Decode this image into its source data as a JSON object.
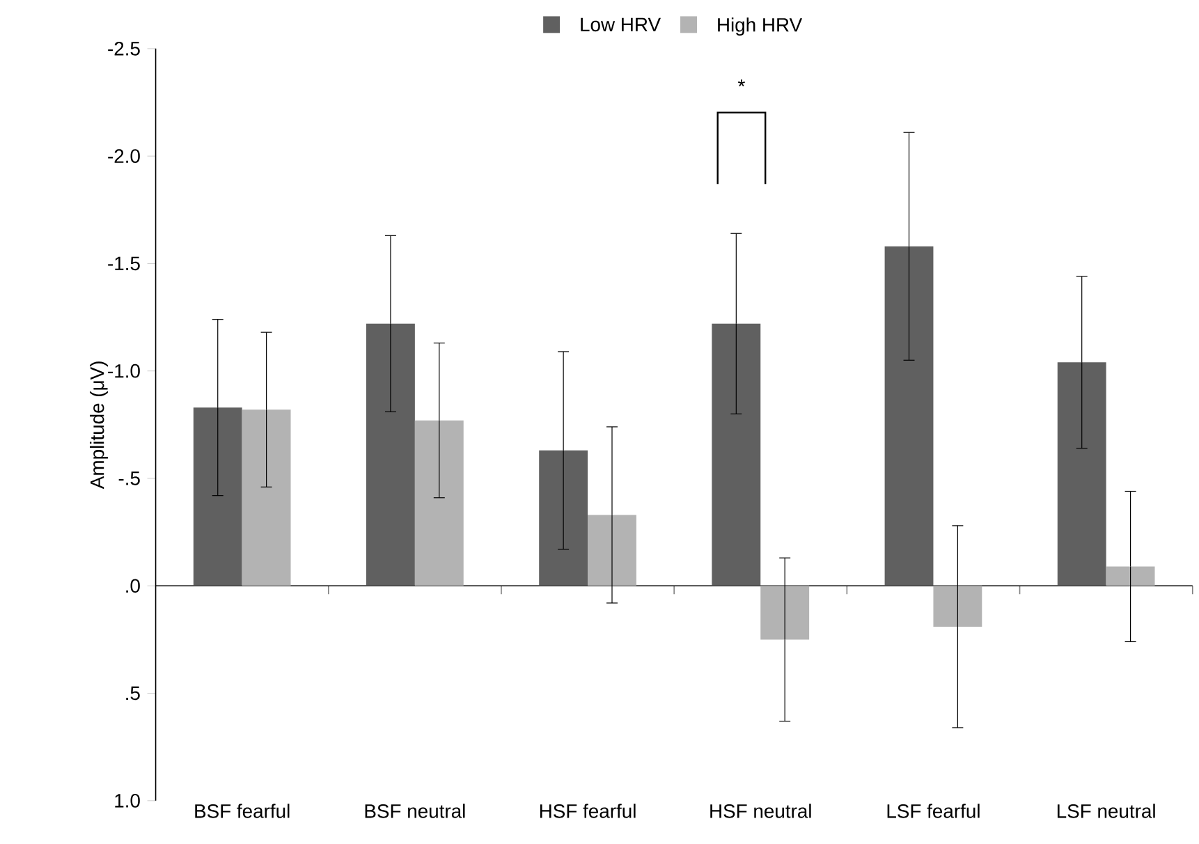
{
  "chart_data": {
    "type": "bar",
    "ylabel": "Amplitude (μV)",
    "categories": [
      "BSF fearful",
      "BSF neutral",
      "HSF fearful",
      "HSF neutral",
      "LSF fearful",
      "LSF neutral"
    ],
    "series": [
      {
        "name": "Low HRV",
        "color": "#606060",
        "values": [
          -0.83,
          -1.22,
          -0.63,
          -1.22,
          -1.58,
          -1.04
        ],
        "errors": [
          0.41,
          0.41,
          0.46,
          0.42,
          0.53,
          0.4
        ]
      },
      {
        "name": "High HRV",
        "color": "#b3b3b3",
        "values": [
          -0.82,
          -0.77,
          -0.33,
          0.25,
          0.19,
          -0.09
        ],
        "errors": [
          0.36,
          0.36,
          0.41,
          0.38,
          0.47,
          0.35
        ]
      }
    ],
    "ylim": [
      1.0,
      -2.5
    ],
    "yticks": [
      -2.5,
      {
        "value": -2.0,
        "label": "-2.0"
      },
      -1.5,
      {
        "value": -1.0,
        "label": "-1.0"
      },
      {
        "value": -0.5,
        "label": "-.5"
      },
      {
        "value": 0,
        "label": ".0"
      },
      {
        "value": 0.5,
        "label": ".5"
      },
      {
        "value": 1.0,
        "label": "1.0"
      }
    ],
    "annotations": [
      "*"
    ],
    "legend": "top"
  }
}
